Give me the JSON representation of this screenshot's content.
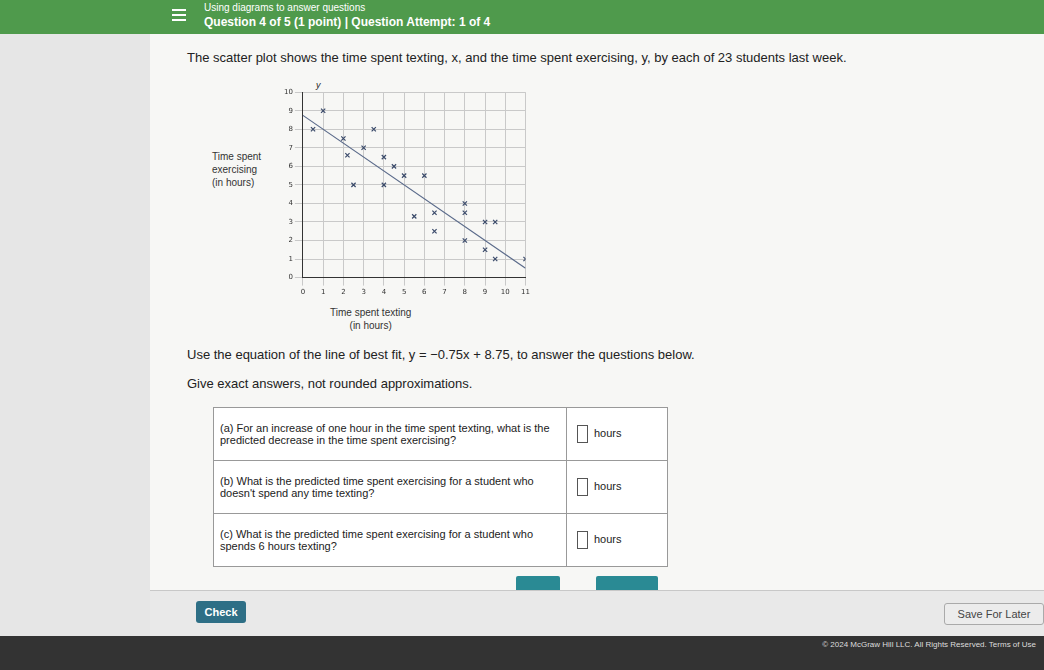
{
  "header": {
    "topic": "Using diagrams to answer questions",
    "question_info": "Question 4 of 5 (1 point)  |  Question Attempt: 1 of 4"
  },
  "intro": "The scatter plot shows the time spent texting, x, and the time spent exercising, y, by each of 23 students last week.",
  "instruction": "Use the equation of the line of best fit, y = −0.75x + 8.75, to answer the questions below.",
  "note": "Give exact answers, not rounded approximations.",
  "table": {
    "rows": [
      [
        "(a) For an increase of one hour in the time spent texting, what is the predicted decrease in the time spent exercising?",
        "hours"
      ],
      [
        "(b) What is the predicted time spent exercising for a student who doesn't spend any time texting?",
        "hours"
      ],
      [
        "(c) What is the predicted time spent exercising for a student who spends 6 hours texting?",
        "hours"
      ]
    ]
  },
  "buttons": {
    "check": "Check",
    "save": "Save For Later"
  },
  "footer": {
    "copyright": "© 2024 McGraw Hill LLC. All Rights Reserved.",
    "terms": "Terms of Use"
  },
  "chart_data": {
    "type": "scatter",
    "x_label": [
      "Time spent texting",
      "(in hours)"
    ],
    "y_label": [
      "Time spent",
      "exercising",
      "(in hours)"
    ],
    "annotations": [
      "y"
    ],
    "x": [
      1,
      0.5,
      2,
      3.5,
      3,
      2.2,
      4,
      4.5,
      2.5,
      4,
      5,
      6,
      8,
      6.5,
      5.5,
      8,
      9,
      9.5,
      6.5,
      8,
      9,
      9.5,
      11
    ],
    "values": [
      9,
      8,
      7.5,
      8,
      7,
      6.6,
      6.5,
      6,
      5,
      5,
      5.5,
      5.5,
      4,
      3.5,
      3.3,
      3.5,
      3,
      3,
      2.5,
      2,
      1.5,
      1,
      1
    ],
    "color": "#3a4a6a",
    "marker": "x",
    "fit_line": {
      "slope": -0.75,
      "intercept": 8.75,
      "color": "#5a6a8a"
    },
    "xlim": [
      0,
      11
    ],
    "xticks": [
      0,
      1,
      2,
      3,
      4,
      5,
      6,
      7,
      8,
      9,
      10,
      11
    ],
    "ylim": [
      0,
      10
    ],
    "yticks": [
      0,
      1,
      2,
      3,
      4,
      5,
      6,
      7,
      8,
      9,
      10
    ],
    "grid": true
  }
}
